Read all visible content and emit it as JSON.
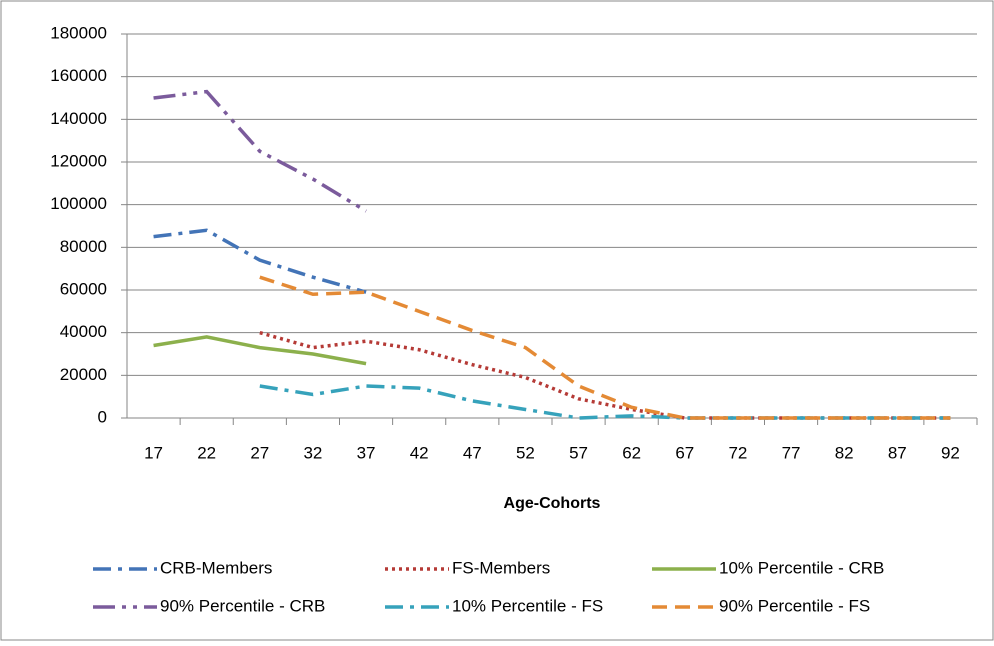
{
  "chart_data": {
    "type": "line",
    "x_label": "Age-Cohorts",
    "categories": [
      "17",
      "22",
      "27",
      "32",
      "37",
      "42",
      "47",
      "52",
      "57",
      "62",
      "67",
      "72",
      "77",
      "82",
      "87",
      "92"
    ],
    "ylim": [
      0,
      180000
    ],
    "yticks": [
      0,
      20000,
      40000,
      60000,
      80000,
      100000,
      120000,
      140000,
      160000,
      180000
    ],
    "grid": true,
    "legend": "bottom",
    "series": [
      {
        "name": "CRB-Members",
        "color": "#4374b7",
        "dash": "dash-dot",
        "values": [
          85000,
          88000,
          74000,
          66000,
          59000,
          null,
          null,
          null,
          null,
          null,
          null,
          null,
          null,
          null,
          null,
          null
        ]
      },
      {
        "name": "FS-Members",
        "color": "#b53a36",
        "dash": "dot",
        "values": [
          null,
          null,
          40000,
          33000,
          36000,
          32000,
          25000,
          19000,
          9000,
          4000,
          0,
          0,
          0,
          0,
          0,
          0
        ]
      },
      {
        "name": "10% Percentile - CRB",
        "color": "#8cb04c",
        "dash": "solid",
        "values": [
          34000,
          38000,
          33000,
          30000,
          25500,
          null,
          null,
          null,
          null,
          null,
          null,
          null,
          null,
          null,
          null,
          null
        ]
      },
      {
        "name": "90% Percentile - CRB",
        "color": "#7b5b9c",
        "dash": "long-dash-dot-dot",
        "values": [
          150000,
          153000,
          125000,
          112000,
          97000,
          null,
          null,
          null,
          null,
          null,
          null,
          null,
          null,
          null,
          null,
          null
        ]
      },
      {
        "name": "10% Percentile - FS",
        "color": "#36a2bb",
        "dash": "dash-dot",
        "values": [
          null,
          null,
          15000,
          11000,
          15000,
          14000,
          8000,
          4000,
          0,
          1000,
          0,
          0,
          0,
          0,
          0,
          0
        ]
      },
      {
        "name": "90% Percentile - FS",
        "color": "#e48a35",
        "dash": "dash",
        "values": [
          null,
          null,
          66000,
          58000,
          59000,
          50000,
          41000,
          33000,
          15000,
          5000,
          0,
          0,
          0,
          0,
          0,
          0
        ]
      }
    ]
  }
}
